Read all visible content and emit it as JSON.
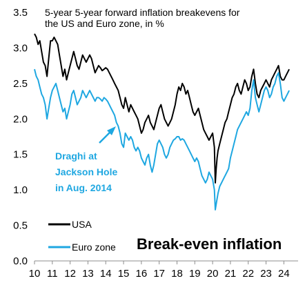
{
  "chart_data": {
    "type": "line",
    "title_lines": [
      "5-year 5-year forward inflation breakevens for",
      "the US and Euro zone, in %"
    ],
    "big_title": "Break-even inflation",
    "annotation_lines": [
      "Draghi at",
      "Jackson Hole",
      "in Aug. 2014"
    ],
    "xlabel": "",
    "ylabel": "",
    "ylim": [
      0,
      3.5
    ],
    "xlim": [
      10,
      24.8
    ],
    "y_ticks": [
      "0.0",
      "0.5",
      "1.0",
      "1.5",
      "2.0",
      "2.5",
      "3.0",
      "3.5"
    ],
    "x_ticks": [
      "10",
      "11",
      "12",
      "13",
      "14",
      "15",
      "16",
      "17",
      "18",
      "19",
      "20",
      "21",
      "22",
      "23",
      "24"
    ],
    "grid": false,
    "legend_position": "bottom-left",
    "series": [
      {
        "name": "USA",
        "color": "#000000",
        "points": [
          [
            10.0,
            3.2
          ],
          [
            10.1,
            3.15
          ],
          [
            10.2,
            3.05
          ],
          [
            10.3,
            3.1
          ],
          [
            10.4,
            2.95
          ],
          [
            10.5,
            2.8
          ],
          [
            10.6,
            2.75
          ],
          [
            10.7,
            2.6
          ],
          [
            10.8,
            2.85
          ],
          [
            10.9,
            3.1
          ],
          [
            11.0,
            3.1
          ],
          [
            11.1,
            3.15
          ],
          [
            11.2,
            3.1
          ],
          [
            11.3,
            3.05
          ],
          [
            11.4,
            2.9
          ],
          [
            11.5,
            2.75
          ],
          [
            11.6,
            2.6
          ],
          [
            11.7,
            2.7
          ],
          [
            11.8,
            2.55
          ],
          [
            11.9,
            2.65
          ],
          [
            12.0,
            2.75
          ],
          [
            12.1,
            2.85
          ],
          [
            12.2,
            2.95
          ],
          [
            12.3,
            2.85
          ],
          [
            12.4,
            2.75
          ],
          [
            12.5,
            2.7
          ],
          [
            12.6,
            2.8
          ],
          [
            12.7,
            2.9
          ],
          [
            12.8,
            2.85
          ],
          [
            12.9,
            2.8
          ],
          [
            13.0,
            2.85
          ],
          [
            13.1,
            2.9
          ],
          [
            13.2,
            2.85
          ],
          [
            13.3,
            2.75
          ],
          [
            13.4,
            2.65
          ],
          [
            13.5,
            2.7
          ],
          [
            13.6,
            2.75
          ],
          [
            13.7,
            2.72
          ],
          [
            13.8,
            2.68
          ],
          [
            13.9,
            2.7
          ],
          [
            14.0,
            2.72
          ],
          [
            14.1,
            2.7
          ],
          [
            14.2,
            2.65
          ],
          [
            14.3,
            2.6
          ],
          [
            14.4,
            2.55
          ],
          [
            14.5,
            2.5
          ],
          [
            14.6,
            2.45
          ],
          [
            14.7,
            2.4
          ],
          [
            14.8,
            2.3
          ],
          [
            14.9,
            2.2
          ],
          [
            15.0,
            2.15
          ],
          [
            15.1,
            2.3
          ],
          [
            15.2,
            2.2
          ],
          [
            15.3,
            2.1
          ],
          [
            15.4,
            2.2
          ],
          [
            15.5,
            2.15
          ],
          [
            15.6,
            2.1
          ],
          [
            15.7,
            2.05
          ],
          [
            15.8,
            2.0
          ],
          [
            15.9,
            1.9
          ],
          [
            16.0,
            1.8
          ],
          [
            16.1,
            1.85
          ],
          [
            16.2,
            1.95
          ],
          [
            16.3,
            2.0
          ],
          [
            16.4,
            2.05
          ],
          [
            16.5,
            1.95
          ],
          [
            16.6,
            1.9
          ],
          [
            16.7,
            1.85
          ],
          [
            16.8,
            1.95
          ],
          [
            16.9,
            2.05
          ],
          [
            17.0,
            2.15
          ],
          [
            17.1,
            2.2
          ],
          [
            17.2,
            2.1
          ],
          [
            17.3,
            2.0
          ],
          [
            17.4,
            1.95
          ],
          [
            17.5,
            1.9
          ],
          [
            17.6,
            1.95
          ],
          [
            17.7,
            2.0
          ],
          [
            17.8,
            2.1
          ],
          [
            17.9,
            2.2
          ],
          [
            18.0,
            2.35
          ],
          [
            18.1,
            2.45
          ],
          [
            18.2,
            2.4
          ],
          [
            18.3,
            2.5
          ],
          [
            18.4,
            2.45
          ],
          [
            18.5,
            2.35
          ],
          [
            18.6,
            2.4
          ],
          [
            18.7,
            2.3
          ],
          [
            18.8,
            2.2
          ],
          [
            18.9,
            2.1
          ],
          [
            19.0,
            2.05
          ],
          [
            19.1,
            2.1
          ],
          [
            19.2,
            2.15
          ],
          [
            19.3,
            2.05
          ],
          [
            19.4,
            1.95
          ],
          [
            19.5,
            1.85
          ],
          [
            19.6,
            1.8
          ],
          [
            19.7,
            1.75
          ],
          [
            19.8,
            1.7
          ],
          [
            19.9,
            1.75
          ],
          [
            20.0,
            1.8
          ],
          [
            20.1,
            1.6
          ],
          [
            20.15,
            1.1
          ],
          [
            20.2,
            1.3
          ],
          [
            20.25,
            1.45
          ],
          [
            20.3,
            1.55
          ],
          [
            20.4,
            1.65
          ],
          [
            20.5,
            1.75
          ],
          [
            20.6,
            1.85
          ],
          [
            20.7,
            1.95
          ],
          [
            20.8,
            2.0
          ],
          [
            20.9,
            2.1
          ],
          [
            21.0,
            2.2
          ],
          [
            21.1,
            2.3
          ],
          [
            21.2,
            2.35
          ],
          [
            21.3,
            2.45
          ],
          [
            21.4,
            2.5
          ],
          [
            21.5,
            2.4
          ],
          [
            21.6,
            2.35
          ],
          [
            21.7,
            2.45
          ],
          [
            21.8,
            2.55
          ],
          [
            21.9,
            2.5
          ],
          [
            22.0,
            2.4
          ],
          [
            22.1,
            2.45
          ],
          [
            22.2,
            2.6
          ],
          [
            22.3,
            2.7
          ],
          [
            22.4,
            2.5
          ],
          [
            22.5,
            2.35
          ],
          [
            22.6,
            2.3
          ],
          [
            22.7,
            2.4
          ],
          [
            22.8,
            2.45
          ],
          [
            22.9,
            2.5
          ],
          [
            23.0,
            2.55
          ],
          [
            23.1,
            2.5
          ],
          [
            23.2,
            2.45
          ],
          [
            23.3,
            2.55
          ],
          [
            23.4,
            2.6
          ],
          [
            23.5,
            2.65
          ],
          [
            23.6,
            2.7
          ],
          [
            23.7,
            2.75
          ],
          [
            23.8,
            2.6
          ],
          [
            23.9,
            2.55
          ],
          [
            24.0,
            2.55
          ],
          [
            24.1,
            2.6
          ],
          [
            24.2,
            2.65
          ],
          [
            24.3,
            2.7
          ]
        ]
      },
      {
        "name": "Euro zone",
        "color": "#1ea7e1",
        "points": [
          [
            10.0,
            2.7
          ],
          [
            10.1,
            2.6
          ],
          [
            10.2,
            2.55
          ],
          [
            10.3,
            2.45
          ],
          [
            10.4,
            2.35
          ],
          [
            10.5,
            2.3
          ],
          [
            10.6,
            2.2
          ],
          [
            10.7,
            2.0
          ],
          [
            10.8,
            2.15
          ],
          [
            10.9,
            2.3
          ],
          [
            11.0,
            2.4
          ],
          [
            11.1,
            2.45
          ],
          [
            11.2,
            2.5
          ],
          [
            11.3,
            2.4
          ],
          [
            11.4,
            2.3
          ],
          [
            11.5,
            2.2
          ],
          [
            11.6,
            2.1
          ],
          [
            11.7,
            2.15
          ],
          [
            11.8,
            2.0
          ],
          [
            11.9,
            2.1
          ],
          [
            12.0,
            2.2
          ],
          [
            12.1,
            2.35
          ],
          [
            12.2,
            2.4
          ],
          [
            12.3,
            2.3
          ],
          [
            12.4,
            2.2
          ],
          [
            12.5,
            2.25
          ],
          [
            12.6,
            2.3
          ],
          [
            12.7,
            2.4
          ],
          [
            12.8,
            2.35
          ],
          [
            12.9,
            2.3
          ],
          [
            13.0,
            2.35
          ],
          [
            13.1,
            2.4
          ],
          [
            13.2,
            2.35
          ],
          [
            13.3,
            2.3
          ],
          [
            13.4,
            2.25
          ],
          [
            13.5,
            2.3
          ],
          [
            13.6,
            2.3
          ],
          [
            13.7,
            2.28
          ],
          [
            13.8,
            2.25
          ],
          [
            13.9,
            2.3
          ],
          [
            14.0,
            2.28
          ],
          [
            14.1,
            2.25
          ],
          [
            14.2,
            2.2
          ],
          [
            14.3,
            2.15
          ],
          [
            14.4,
            2.1
          ],
          [
            14.5,
            2.05
          ],
          [
            14.6,
            1.95
          ],
          [
            14.7,
            1.9
          ],
          [
            14.8,
            1.8
          ],
          [
            14.9,
            1.65
          ],
          [
            15.0,
            1.6
          ],
          [
            15.1,
            1.8
          ],
          [
            15.2,
            1.75
          ],
          [
            15.3,
            1.7
          ],
          [
            15.4,
            1.75
          ],
          [
            15.5,
            1.7
          ],
          [
            15.6,
            1.6
          ],
          [
            15.7,
            1.55
          ],
          [
            15.8,
            1.6
          ],
          [
            15.9,
            1.55
          ],
          [
            16.0,
            1.45
          ],
          [
            16.1,
            1.4
          ],
          [
            16.2,
            1.35
          ],
          [
            16.3,
            1.45
          ],
          [
            16.4,
            1.5
          ],
          [
            16.5,
            1.35
          ],
          [
            16.6,
            1.25
          ],
          [
            16.7,
            1.35
          ],
          [
            16.8,
            1.5
          ],
          [
            16.9,
            1.65
          ],
          [
            17.0,
            1.7
          ],
          [
            17.1,
            1.65
          ],
          [
            17.2,
            1.6
          ],
          [
            17.3,
            1.5
          ],
          [
            17.4,
            1.45
          ],
          [
            17.5,
            1.5
          ],
          [
            17.6,
            1.6
          ],
          [
            17.7,
            1.65
          ],
          [
            17.8,
            1.7
          ],
          [
            17.9,
            1.72
          ],
          [
            18.0,
            1.75
          ],
          [
            18.1,
            1.75
          ],
          [
            18.2,
            1.7
          ],
          [
            18.3,
            1.72
          ],
          [
            18.4,
            1.7
          ],
          [
            18.5,
            1.65
          ],
          [
            18.6,
            1.6
          ],
          [
            18.7,
            1.55
          ],
          [
            18.8,
            1.5
          ],
          [
            18.9,
            1.45
          ],
          [
            19.0,
            1.4
          ],
          [
            19.1,
            1.45
          ],
          [
            19.2,
            1.4
          ],
          [
            19.3,
            1.3
          ],
          [
            19.4,
            1.2
          ],
          [
            19.5,
            1.15
          ],
          [
            19.6,
            1.1
          ],
          [
            19.7,
            1.15
          ],
          [
            19.8,
            1.25
          ],
          [
            19.9,
            1.2
          ],
          [
            20.0,
            1.15
          ],
          [
            20.1,
            1.0
          ],
          [
            20.15,
            0.72
          ],
          [
            20.2,
            0.8
          ],
          [
            20.3,
            0.95
          ],
          [
            20.4,
            1.05
          ],
          [
            20.5,
            1.1
          ],
          [
            20.6,
            1.15
          ],
          [
            20.7,
            1.2
          ],
          [
            20.8,
            1.25
          ],
          [
            20.9,
            1.3
          ],
          [
            21.0,
            1.45
          ],
          [
            21.1,
            1.55
          ],
          [
            21.2,
            1.65
          ],
          [
            21.3,
            1.75
          ],
          [
            21.4,
            1.85
          ],
          [
            21.5,
            1.9
          ],
          [
            21.6,
            1.95
          ],
          [
            21.7,
            2.0
          ],
          [
            21.8,
            2.05
          ],
          [
            21.9,
            2.1
          ],
          [
            22.0,
            2.05
          ],
          [
            22.1,
            2.15
          ],
          [
            22.2,
            2.4
          ],
          [
            22.3,
            2.55
          ],
          [
            22.4,
            2.3
          ],
          [
            22.5,
            2.2
          ],
          [
            22.6,
            2.1
          ],
          [
            22.7,
            2.2
          ],
          [
            22.8,
            2.3
          ],
          [
            22.9,
            2.4
          ],
          [
            23.0,
            2.45
          ],
          [
            23.1,
            2.4
          ],
          [
            23.2,
            2.3
          ],
          [
            23.3,
            2.35
          ],
          [
            23.4,
            2.45
          ],
          [
            23.5,
            2.5
          ],
          [
            23.6,
            2.6
          ],
          [
            23.7,
            2.65
          ],
          [
            23.8,
            2.5
          ],
          [
            23.9,
            2.3
          ],
          [
            24.0,
            2.25
          ],
          [
            24.1,
            2.3
          ],
          [
            24.2,
            2.35
          ],
          [
            24.3,
            2.4
          ]
        ]
      }
    ]
  }
}
